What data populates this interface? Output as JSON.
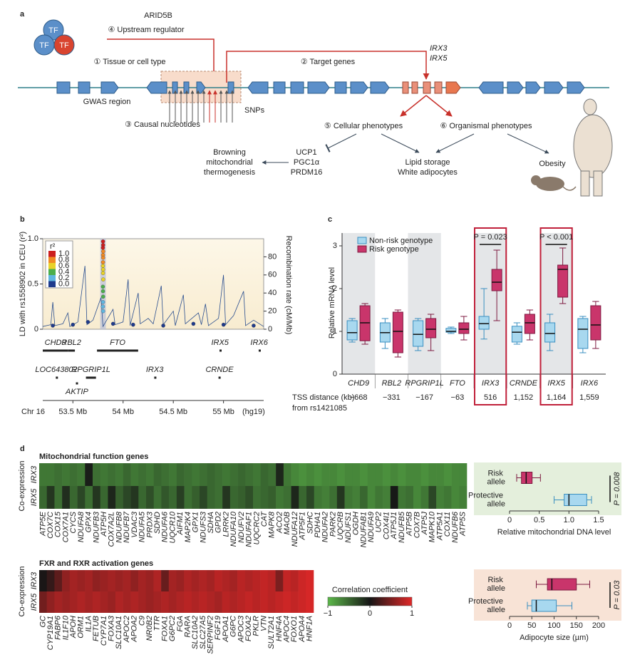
{
  "panel_a": {
    "letter": "a",
    "tf": [
      "TF",
      "TF",
      "TF"
    ],
    "regulator": "ARID5B",
    "upstream": "④ Upstream regulator",
    "tissue": "① Tissue or cell type",
    "target": "② Target genes",
    "targets": [
      "IRX3",
      "IRX5"
    ],
    "gwas": "GWAS region",
    "snps": "SNPs",
    "causal": "③ Causal nucleotides",
    "cellular": "⑤ Cellular phenotypes",
    "organismal": "⑥ Organismal phenotypes",
    "browning": [
      "Browning",
      "mitochondrial",
      "thermogenesis"
    ],
    "regulators": [
      "UCP1",
      "PGC1α",
      "PRDM16"
    ],
    "lipid": [
      "Lipid storage",
      "White adipocytes"
    ],
    "obesity": "Obesity"
  },
  "colorbar": {
    "title": "Correlation coefficient",
    "zlim": [
      -1,
      1
    ],
    "zticks": [
      {
        "value": -1,
        "label": "−1"
      },
      0,
      1
    ],
    "colors": [
      "#5cb84a",
      "#161616",
      "#e02828"
    ]
  },
  "chart_data": [
    {
      "type": "locus",
      "panel": "b",
      "ylabel": "LD with rs1558902 in CEU (r²)",
      "y2label": "Recombination rate (cM/Mb)",
      "chromosome": "Chr 16",
      "xlabel": "(hg19)",
      "xlim": [
        53.2,
        55.4
      ],
      "xticks": [
        {
          "value": 53.5,
          "label": "53.5 Mb"
        },
        {
          "value": 54,
          "label": "54 Mb"
        },
        {
          "value": 54.5,
          "label": "54.5 Mb"
        },
        {
          "value": 55,
          "label": "55 Mb"
        }
      ],
      "ylim": [
        0,
        1
      ],
      "yticks": [
        0,
        0.5,
        {
          "value": 1,
          "label": "1.0"
        }
      ],
      "y2lim": [
        0,
        100
      ],
      "y2ticks": [
        0,
        20,
        40,
        60,
        80
      ],
      "legend_title": "r²",
      "legend_levels": [
        {
          "value": 1,
          "label": "1.0"
        },
        {
          "value": 0.8,
          "label": "0.8"
        },
        {
          "value": 0.6,
          "label": "0.6"
        },
        {
          "value": 0.4,
          "label": "0.4"
        },
        {
          "value": 0.2,
          "label": "0.2"
        },
        {
          "value": 0,
          "label": "0.0"
        }
      ],
      "legend_colors": [
        "#cc1f1f",
        "#f08a24",
        "#e8d22a",
        "#4cae4c",
        "#5fb6e0",
        "#1f3b8c"
      ],
      "points": {
        "x": [
          53.8,
          53.801,
          53.799,
          53.802,
          53.8,
          53.801,
          53.8,
          53.799,
          53.801,
          53.8,
          53.802,
          53.799,
          53.8,
          53.801,
          53.8,
          53.799,
          53.801,
          53.3,
          53.5,
          53.65,
          53.9,
          54.1,
          54.4,
          54.7,
          55.0,
          55.3
        ],
        "values": [
          0.97,
          0.93,
          0.9,
          0.86,
          0.82,
          0.79,
          0.74,
          0.7,
          0.66,
          0.62,
          0.55,
          0.47,
          0.42,
          0.36,
          0.3,
          0.25,
          0.2,
          0.04,
          0.05,
          0.08,
          0.06,
          0.05,
          0.04,
          0.06,
          0.05,
          0.04
        ]
      },
      "recombination": {
        "color": "#2a4e8f",
        "x": [
          53.2,
          53.28,
          53.3,
          53.32,
          53.4,
          53.45,
          53.47,
          53.55,
          53.62,
          53.64,
          53.7,
          53.78,
          53.8,
          53.9,
          53.92,
          54.0,
          54.05,
          54.07,
          54.15,
          54.17,
          54.25,
          54.3,
          54.38,
          54.4,
          54.5,
          54.52,
          54.6,
          54.62,
          54.75,
          54.78,
          54.82,
          54.85,
          54.95,
          55.0,
          55.02,
          55.1,
          55.2,
          55.22,
          55.3,
          55.4
        ],
        "values": [
          3,
          5,
          30,
          4,
          6,
          18,
          3,
          8,
          70,
          5,
          10,
          35,
          3,
          22,
          5,
          8,
          55,
          4,
          40,
          6,
          12,
          6,
          48,
          5,
          20,
          4,
          38,
          6,
          18,
          5,
          28,
          4,
          12,
          60,
          5,
          15,
          42,
          4,
          10,
          3
        ]
      },
      "genes": [
        {
          "name": "CHD9",
          "start": 53.2,
          "end": 53.45
        },
        {
          "name": "RBL2",
          "start": 53.45,
          "end": 53.52
        },
        {
          "name": "FTO",
          "start": 53.74,
          "end": 54.15
        },
        {
          "name": "IRX5",
          "start": 54.96,
          "end": 54.97
        },
        {
          "name": "IRX6",
          "start": 55.35,
          "end": 55.36
        },
        {
          "name": "LOC643802",
          "start": 53.33,
          "end": 53.34
        },
        {
          "name": "RPGRIP1L",
          "start": 53.63,
          "end": 53.73
        },
        {
          "name": "IRX3",
          "start": 54.31,
          "end": 54.32
        },
        {
          "name": "CRNDE",
          "start": 54.95,
          "end": 54.97
        },
        {
          "name": "AKTIP",
          "start": 53.53,
          "end": 53.55
        }
      ]
    },
    {
      "type": "box",
      "panel": "c",
      "ylabel": "Relative mRNA level",
      "ylim": [
        0,
        3.3
      ],
      "yticks": [
        0,
        1,
        2,
        3
      ],
      "categories": [
        "CHD9",
        "RBL2",
        "RPGRIP1L",
        "FTO",
        "IRX3",
        "CRNDE",
        "IRX5",
        "IRX6"
      ],
      "series": [
        {
          "name": "Non-risk genotype",
          "color": "#a8d8ef",
          "edgecolor": "#3a8fc0",
          "values": [
            [
              0.75,
              0.8,
              0.97,
              1.25,
              1.3
            ],
            [
              0.6,
              0.75,
              0.97,
              1.2,
              1.3
            ],
            [
              0.55,
              0.65,
              0.93,
              1.25,
              1.3
            ],
            [
              0.95,
              0.98,
              1.0,
              1.07,
              1.1
            ],
            [
              0.82,
              1.05,
              1.18,
              1.35,
              2.0
            ],
            [
              0.7,
              0.75,
              0.98,
              1.12,
              1.2
            ],
            [
              0.55,
              0.75,
              0.95,
              1.2,
              1.4
            ],
            [
              0.5,
              0.6,
              1.05,
              1.3,
              1.35
            ]
          ]
        },
        {
          "name": "Risk genotype",
          "color": "#c9356b",
          "edgecolor": "#7d1a40",
          "values": [
            [
              0.7,
              0.78,
              1.2,
              1.6,
              1.65
            ],
            [
              0.4,
              0.5,
              1.0,
              1.45,
              1.5
            ],
            [
              0.55,
              0.85,
              1.05,
              1.3,
              1.4
            ],
            [
              0.8,
              0.95,
              1.05,
              1.2,
              1.35
            ],
            [
              1.25,
              1.95,
              2.15,
              2.45,
              2.9
            ],
            [
              0.8,
              0.95,
              1.2,
              1.4,
              1.5
            ],
            [
              1.65,
              1.8,
              2.45,
              2.55,
              2.95
            ],
            [
              0.6,
              0.8,
              1.15,
              1.6,
              1.7
            ]
          ]
        }
      ],
      "annotations": [
        {
          "category": "IRX3",
          "text": "P = 0.023"
        },
        {
          "category": "IRX5",
          "text": "P < 0.001"
        }
      ],
      "row_label": [
        "TSS distance (kb)",
        "from rs1421085"
      ],
      "tss": [
        "−668",
        "−331",
        "−167",
        "−63",
        "516",
        "1,152",
        "1,164",
        "1,559"
      ]
    },
    {
      "type": "heatmap",
      "panel": "d",
      "title": "Mitochondrial function genes",
      "ylabel": "Co-expression",
      "rows": [
        "IRX3",
        "IRX5"
      ],
      "columns": [
        "ATP5E",
        "COX7C",
        "COX15",
        "COX7A1",
        "CYCS",
        "NDUFA8",
        "GPX4",
        "NDUFB3",
        "ATP5H",
        "COX7A2L",
        "NDUFB8",
        "NDUFB7",
        "VDAC3",
        "NDUFA5",
        "PRDX3",
        "SDHD",
        "NDUFA6",
        "UQCR10",
        "AIFM1",
        "MAP2K4",
        "GPX1",
        "NDUFS3",
        "SDHA",
        "GPD2",
        "LRRK2",
        "NDUFA10",
        "NDUFV2",
        "NDUFAF1",
        "UQCRC2",
        "CAT",
        "MAPK8",
        "ACO2",
        "MAOB",
        "NDUFA12",
        "ATP5F1",
        "SDHC",
        "PDHA1",
        "NDUFA2",
        "PARK2",
        "UQCRB",
        "NDUFS1",
        "OGDH",
        "NDUFAB1",
        "NDUFA9",
        "UCP2",
        "COX4I1",
        "ATP5J1",
        "NDUFB5",
        "ATP5B",
        "COX7B",
        "ATP5J",
        "MAPK10",
        "ATP5A1",
        "COX11",
        "NDUFB6",
        "ATP5S"
      ],
      "values": [
        [
          -0.6,
          -0.6,
          -0.55,
          -0.6,
          -0.55,
          -0.6,
          -0.05,
          -0.55,
          -0.6,
          -0.55,
          -0.6,
          -0.5,
          -0.6,
          -0.55,
          -0.6,
          -0.5,
          -0.55,
          -0.6,
          -0.5,
          -0.55,
          -0.6,
          -0.55,
          -0.5,
          -0.55,
          -0.6,
          -0.55,
          -0.5,
          -0.55,
          -0.6,
          -0.5,
          -0.55,
          -0.1,
          -0.6,
          -0.7,
          -0.75,
          -0.7,
          -0.75,
          -0.7,
          -0.7,
          -0.75,
          -0.7,
          -0.7,
          -0.75,
          -0.7,
          -0.7,
          -0.75,
          -0.7,
          -0.75,
          -0.7,
          -0.7,
          -0.75,
          -0.7,
          -0.7,
          -0.75,
          -0.7,
          -0.7
        ],
        [
          -0.5,
          -0.2,
          -0.55,
          -0.15,
          -0.5,
          -0.3,
          -0.55,
          -0.2,
          -0.5,
          -0.1,
          -0.45,
          -0.3,
          -0.2,
          -0.5,
          -0.35,
          -0.55,
          -0.4,
          -0.5,
          -0.25,
          -0.55,
          -0.45,
          -0.3,
          -0.5,
          -0.55,
          -0.2,
          -0.5,
          -0.45,
          -0.35,
          -0.55,
          -0.5,
          -0.45,
          -0.6,
          -0.55,
          -0.1,
          -0.5,
          -0.3,
          -0.6,
          -0.65,
          -0.55,
          -0.2,
          -0.6,
          -0.65,
          -0.5,
          -0.7,
          -0.6,
          -0.65,
          -0.02,
          -0.6,
          -0.55,
          -0.7,
          -0.6,
          -0.3,
          -0.65,
          -0.6,
          -0.7,
          -0.65
        ]
      ]
    },
    {
      "type": "hbox",
      "categories": [
        "Risk allele",
        "Protective allele"
      ],
      "colors": [
        "#c9356b",
        "#a8d8ef"
      ],
      "edgecolors": [
        "#7d1a40",
        "#3a8fc0"
      ],
      "values": [
        [
          0.12,
          0.2,
          0.28,
          0.38,
          0.52
        ],
        [
          0.75,
          0.92,
          1.0,
          1.3,
          1.38
        ]
      ],
      "xlim": [
        0,
        1.5
      ],
      "xticks": [
        0,
        0.5,
        {
          "value": 1,
          "label": "1.0"
        },
        1.5
      ],
      "xlabel": "Relative mitochondrial DNA level",
      "annotation": "P = 0.008",
      "background": "#e4efdc"
    },
    {
      "type": "heatmap",
      "title": "FXR and RXR activation genes",
      "ylabel": "Co-expression",
      "rows": [
        "IRX3",
        "IRX5"
      ],
      "columns": [
        "GC",
        "CYP19A1",
        "FABP6",
        "IL1F10",
        "APOH",
        "ORM1",
        "IL1A",
        "FETUB",
        "CYP7A1",
        "FOXA3",
        "SLC10A1",
        "APOC2",
        "APOA2",
        "C9",
        "NR0B2",
        "TTR",
        "FOXA1",
        "G6PC2",
        "FGA",
        "RARA",
        "SLC10A2",
        "SLC27A5",
        "SERPINF2",
        "FGF19",
        "APOA1",
        "G6PC",
        "APOC3",
        "FOXA2",
        "PKLR",
        "VTN",
        "SULT2A1",
        "HNF4A",
        "APOC4",
        "FOXO1",
        "APOA4",
        "HNF1A"
      ],
      "values": [
        [
          0.02,
          0.15,
          0.35,
          0.6,
          0.7,
          0.65,
          0.7,
          0.6,
          0.65,
          0.7,
          0.65,
          0.7,
          0.6,
          0.7,
          0.65,
          0.75,
          0.4,
          0.7,
          0.65,
          0.75,
          0.7,
          0.75,
          0.7,
          0.8,
          0.75,
          0.7,
          0.8,
          0.75,
          0.8,
          0.85,
          0.8,
          0.5,
          0.85,
          0.8,
          0.9,
          0.95
        ],
        [
          0.45,
          0.6,
          0.7,
          0.65,
          0.7,
          0.75,
          0.7,
          0.75,
          0.7,
          0.65,
          0.75,
          0.7,
          0.75,
          0.7,
          0.65,
          0.7,
          0.75,
          0.7,
          0.75,
          0.8,
          0.75,
          0.8,
          0.75,
          0.7,
          0.8,
          0.75,
          0.8,
          0.85,
          0.8,
          0.85,
          0.8,
          0.85,
          0.9,
          0.85,
          0.9,
          0.95
        ]
      ]
    },
    {
      "type": "hbox",
      "categories": [
        "Risk allele",
        "Protective allele"
      ],
      "colors": [
        "#c9356b",
        "#a8d8ef"
      ],
      "edgecolors": [
        "#7d1a40",
        "#3a8fc0"
      ],
      "values": [
        [
          60,
          85,
          95,
          150,
          180
        ],
        [
          40,
          50,
          60,
          105,
          140
        ]
      ],
      "xlim": [
        0,
        200
      ],
      "xticks": [
        0,
        50,
        100,
        150,
        200
      ],
      "xlabel": "Adipocyte size (µm)",
      "annotation": "P = 0.03",
      "background": "#f8e3d6"
    }
  ]
}
